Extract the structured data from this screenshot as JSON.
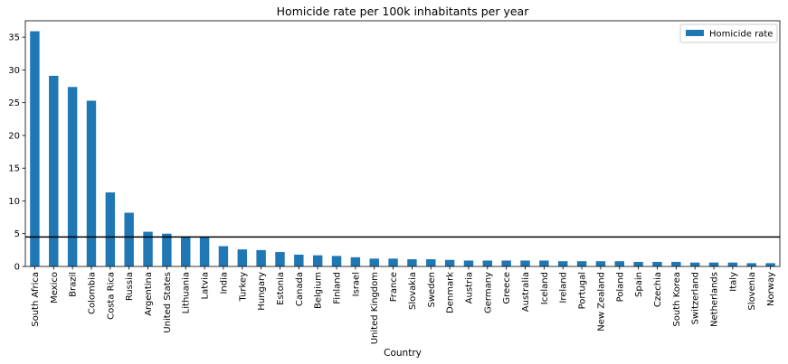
{
  "chart_data": {
    "type": "bar",
    "title": "Homicide rate per 100k inhabitants per year",
    "xlabel": "Country",
    "ylabel": "",
    "ylim": [
      0,
      37.5
    ],
    "yticks": [
      0,
      5,
      10,
      15,
      20,
      25,
      30,
      35
    ],
    "grid": false,
    "legend_position": "top-right",
    "reference_line": 4.5,
    "categories": [
      "South Africa",
      "Mexico",
      "Brazil",
      "Colombia",
      "Costa Rica",
      "Russia",
      "Argentina",
      "United States",
      "Lithuania",
      "Latvia",
      "India",
      "Turkey",
      "Hungary",
      "Estonia",
      "Canada",
      "Belgium",
      "Finland",
      "Israel",
      "United Kingdom",
      "France",
      "Slovakia",
      "Sweden",
      "Denmark",
      "Austria",
      "Germany",
      "Greece",
      "Australia",
      "Iceland",
      "Ireland",
      "Portugal",
      "New Zealand",
      "Poland",
      "Spain",
      "Czechia",
      "South Korea",
      "Switzerland",
      "Netherlands",
      "Italy",
      "Slovenia",
      "Norway"
    ],
    "series": [
      {
        "name": "Homicide rate",
        "color": "#1f77b4",
        "values": [
          35.9,
          29.1,
          27.4,
          25.3,
          11.3,
          8.2,
          5.3,
          5.0,
          4.6,
          4.5,
          3.1,
          2.6,
          2.5,
          2.2,
          1.8,
          1.7,
          1.6,
          1.4,
          1.2,
          1.2,
          1.1,
          1.1,
          1.0,
          0.9,
          0.9,
          0.9,
          0.9,
          0.9,
          0.8,
          0.8,
          0.8,
          0.8,
          0.7,
          0.7,
          0.7,
          0.6,
          0.6,
          0.6,
          0.5,
          0.5
        ]
      }
    ]
  }
}
